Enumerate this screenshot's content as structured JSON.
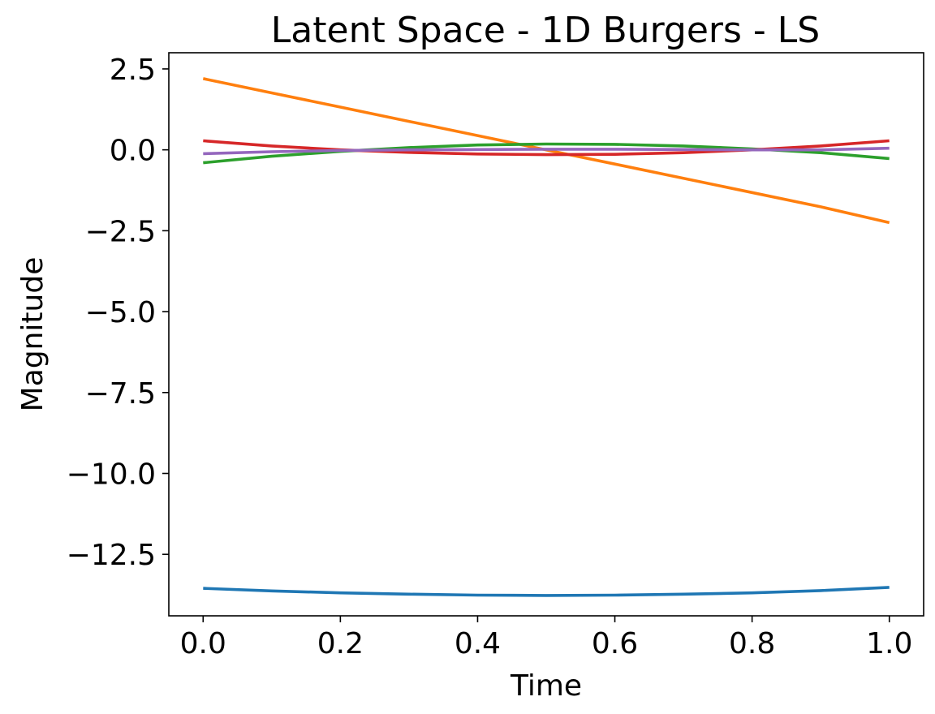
{
  "chart_data": {
    "type": "line",
    "title": "Latent Space - 1D Burgers - LS",
    "xlabel": "Time",
    "ylabel": "Magnitude",
    "xlim": [
      -0.05,
      1.05
    ],
    "ylim": [
      -14.4,
      3.0
    ],
    "xticks": [
      0.0,
      0.2,
      0.4,
      0.6,
      0.8,
      1.0
    ],
    "xtick_labels": [
      "0.0",
      "0.2",
      "0.4",
      "0.6",
      "0.8",
      "1.0"
    ],
    "yticks": [
      2.5,
      0.0,
      -2.5,
      -5.0,
      -7.5,
      -10.0,
      -12.5
    ],
    "ytick_labels": [
      "2.5",
      "0.0",
      "−2.5",
      "−5.0",
      "−7.5",
      "−10.0",
      "−12.5"
    ],
    "grid": false,
    "x": [
      0.0,
      0.1,
      0.2,
      0.3,
      0.4,
      0.5,
      0.6,
      0.7,
      0.8,
      0.9,
      1.0
    ],
    "series": [
      {
        "color": "#1f77b4",
        "values": [
          -13.55,
          -13.63,
          -13.69,
          -13.73,
          -13.76,
          -13.77,
          -13.76,
          -13.73,
          -13.69,
          -13.62,
          -13.52
        ]
      },
      {
        "color": "#ff7f0e",
        "values": [
          2.2,
          1.76,
          1.32,
          0.88,
          0.44,
          0.0,
          -0.44,
          -0.88,
          -1.32,
          -1.76,
          -2.25
        ]
      },
      {
        "color": "#2ca02c",
        "values": [
          -0.4,
          -0.2,
          -0.05,
          0.07,
          0.15,
          0.18,
          0.17,
          0.12,
          0.03,
          -0.09,
          -0.27
        ]
      },
      {
        "color": "#d62728",
        "values": [
          0.28,
          0.12,
          0.0,
          -0.08,
          -0.13,
          -0.15,
          -0.14,
          -0.09,
          0.0,
          0.12,
          0.28
        ]
      },
      {
        "color": "#9467bd",
        "values": [
          -0.12,
          -0.06,
          -0.02,
          0.0,
          0.01,
          0.02,
          0.02,
          0.01,
          0.0,
          0.0,
          0.05
        ]
      }
    ]
  }
}
